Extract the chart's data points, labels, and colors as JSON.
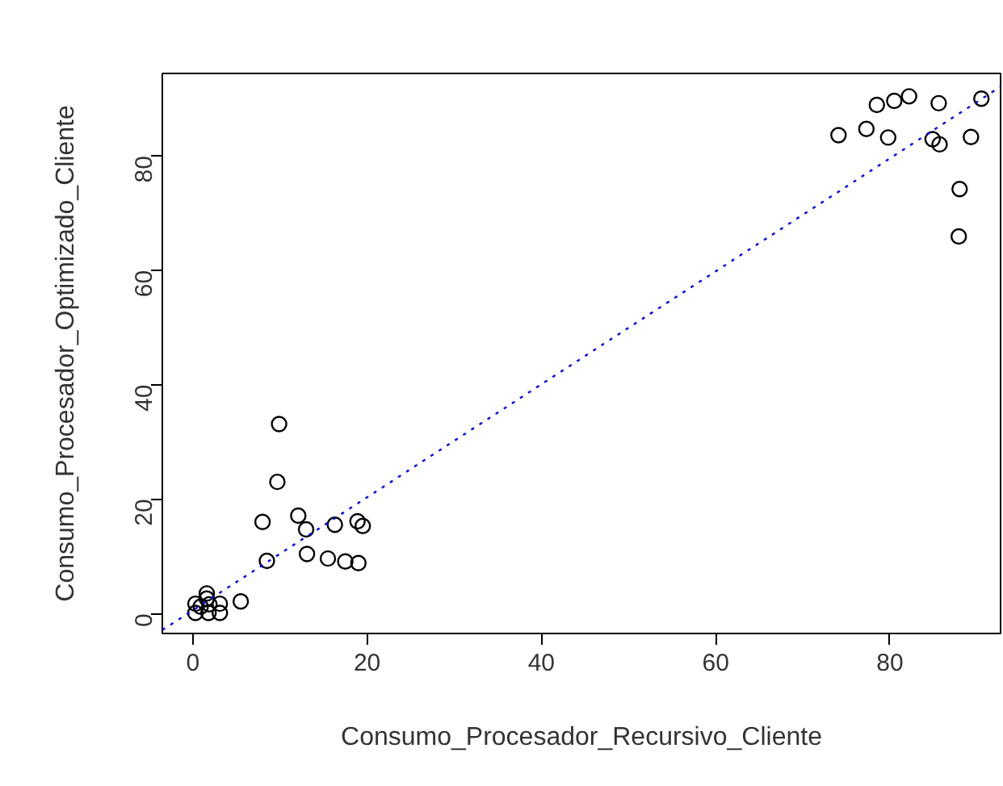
{
  "chart_data": {
    "type": "scatter",
    "xlabel": "Consumo_Procesador_Recursivo_Cliente",
    "ylabel": "Consumo_Procesador_Optimizado_Cliente",
    "xlim": [
      -3.5,
      92.7
    ],
    "ylim": [
      -3.5,
      94.4
    ],
    "xticks": [
      0,
      20,
      40,
      60,
      80
    ],
    "yticks": [
      0,
      20,
      40,
      60,
      80
    ],
    "grid": false,
    "series": [
      {
        "color": "#000000",
        "marker": "circle",
        "x": [
          9.9,
          9.7,
          8.0,
          12.1,
          13.0,
          16.3,
          18.9,
          19.5,
          8.5,
          13.1,
          15.5,
          17.5,
          19.0,
          5.5,
          1.6,
          1.6,
          0.3,
          0.3,
          1.8,
          3.1,
          3.1,
          1.9,
          0.9,
          78.5,
          80.5,
          82.2,
          85.6,
          90.5,
          74.1,
          77.3,
          79.8,
          84.9,
          85.7,
          89.3,
          88.0,
          87.9
        ],
        "values": [
          33.1,
          23.0,
          16.0,
          17.1,
          14.7,
          15.5,
          16.1,
          15.3,
          9.2,
          10.4,
          9.6,
          9.1,
          8.8,
          2.1,
          3.5,
          2.6,
          1.7,
          0.1,
          0.1,
          0.1,
          1.7,
          1.6,
          1.2,
          88.9,
          89.6,
          90.4,
          89.2,
          90.0,
          83.6,
          84.7,
          83.2,
          82.9,
          82.0,
          83.3,
          74.2,
          65.9
        ]
      },
      {
        "type": "line",
        "color": "#0000ff",
        "line_style": "dotted",
        "x": [
          -3.5,
          92.7
        ],
        "values": [
          -2.9,
          92.1
        ]
      }
    ]
  }
}
